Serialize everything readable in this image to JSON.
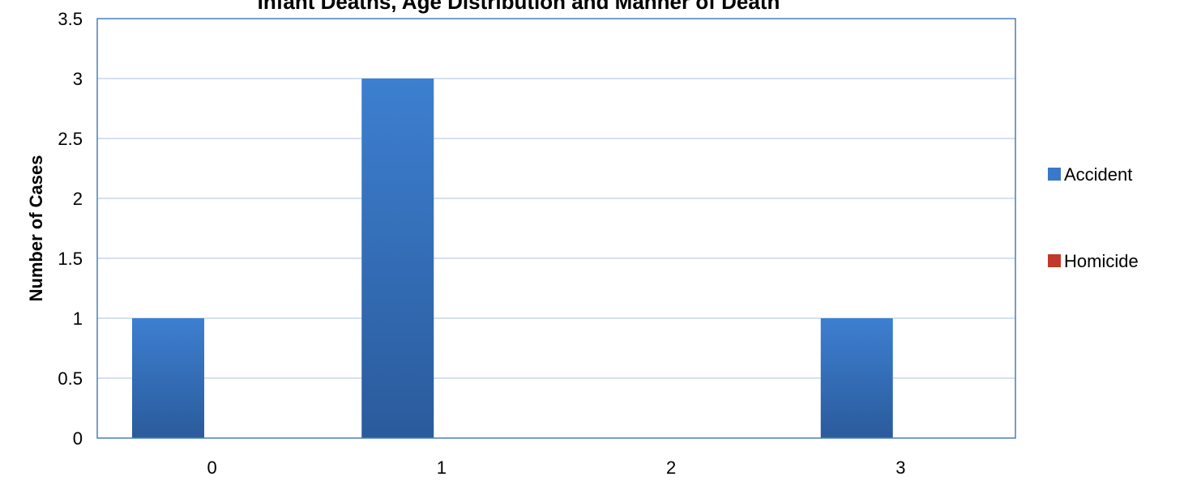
{
  "chart_data": {
    "type": "bar",
    "title": "Infant Deaths, Age Distribution and Manner of Death",
    "xlabel": "",
    "ylabel": "Number of Cases",
    "categories": [
      "0",
      "1",
      "2",
      "3"
    ],
    "ylim": [
      0,
      3.5
    ],
    "yticks": [
      "0",
      "0.5",
      "1",
      "1.5",
      "2",
      "2.5",
      "3",
      "3.5"
    ],
    "grid": true,
    "legend_position": "right",
    "series": [
      {
        "name": "Accident",
        "values": [
          1,
          3,
          0,
          1
        ],
        "color": "#3a78c9"
      },
      {
        "name": "Homicide",
        "values": [
          0,
          0,
          0,
          0
        ],
        "color": "#c0392b"
      }
    ]
  }
}
